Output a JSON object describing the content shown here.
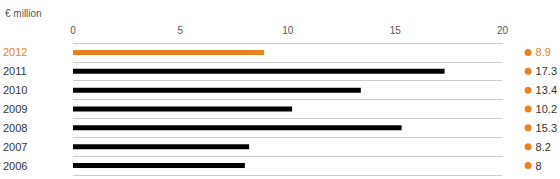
{
  "chart_data": {
    "type": "bar",
    "orientation": "horizontal",
    "xlabel": "€ million",
    "categories": [
      "2012",
      "2011",
      "2010",
      "2009",
      "2008",
      "2007",
      "2006"
    ],
    "values": [
      8.9,
      17.3,
      13.4,
      10.2,
      15.3,
      8.2,
      8.0
    ],
    "colors": [
      "#e8821e",
      "#000000",
      "#000000",
      "#000000",
      "#000000",
      "#000000",
      "#000000"
    ],
    "xlim": [
      0,
      20
    ],
    "xticks": [
      0,
      5,
      10,
      15,
      20
    ],
    "grid": true,
    "data_labels": true
  }
}
